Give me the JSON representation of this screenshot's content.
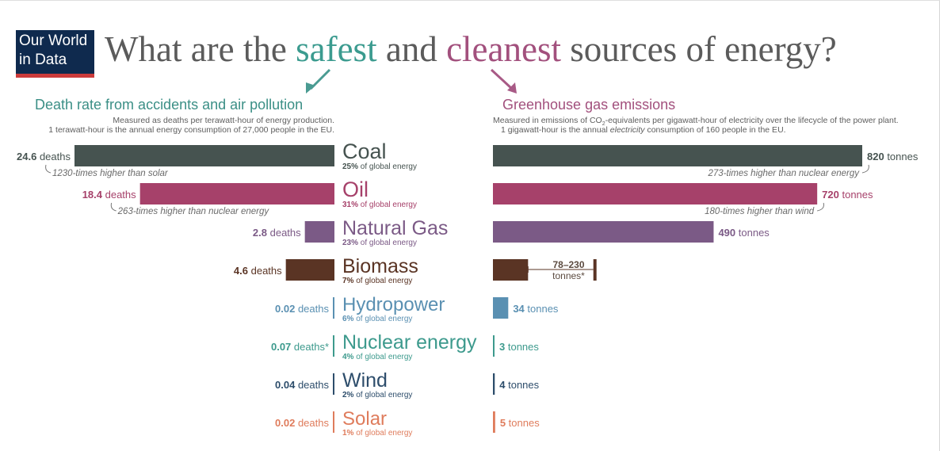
{
  "logo": {
    "line1": "Our World",
    "line2": "in Data"
  },
  "headline": {
    "part1": "What are the ",
    "safe": "safest",
    "part2": " and ",
    "clean": "cleanest",
    "part3": " sources of energy?"
  },
  "left_panel": {
    "title": "Death rate from accidents and air pollution",
    "subtitle1": "Measured as deaths per terawatt-hour of energy production.",
    "subtitle2": "1 terawatt-hour is the annual energy consumption of 27,000 people in the EU."
  },
  "right_panel": {
    "title": "Greenhouse gas emissions",
    "subtitle1_pre": "Measured in emissions of CO",
    "subtitle1_sub": "2",
    "subtitle1_post": "-equivalents per gigawatt-hour of electricity over the lifecycle of the power plant.",
    "subtitle2_pre": "1 gigawatt-hour is the annual ",
    "subtitle2_em": "electricity",
    "subtitle2_post": " consumption of 160 people in the EU."
  },
  "chart_data": {
    "type": "bar",
    "categories": [
      "Coal",
      "Oil",
      "Natural Gas",
      "Biomass",
      "Hydropower",
      "Nuclear energy",
      "Wind",
      "Solar"
    ],
    "share_labels": [
      "25%",
      "31%",
      "23%",
      "7%",
      "6%",
      "4%",
      "2%",
      "1%"
    ],
    "share_suffix": " of global energy",
    "colors": [
      "#465350",
      "#a6416a",
      "#7b5a86",
      "#5a3424",
      "#5a90b2",
      "#3d9a8d",
      "#2d4d6b",
      "#df7c5c"
    ],
    "series": [
      {
        "name": "Death rate from accidents and air pollution",
        "values": [
          24.6,
          18.4,
          2.8,
          4.6,
          0.02,
          0.07,
          0.04,
          0.02
        ],
        "labels": [
          "24.6",
          "18.4",
          "2.8",
          "4.6",
          "0.02",
          "0.07",
          "0.04",
          "0.02"
        ],
        "unit": " deaths",
        "asterisk": [
          false,
          false,
          false,
          false,
          false,
          true,
          false,
          false
        ],
        "annotations": [
          {
            "index": 0,
            "text": "1230-times higher than solar"
          },
          {
            "index": 1,
            "text": "263-times higher than nuclear energy"
          }
        ]
      },
      {
        "name": "Greenhouse gas emissions",
        "values": [
          820,
          720,
          490,
          78,
          34,
          3,
          4,
          5
        ],
        "range": {
          "index": 3,
          "low": 78,
          "high": 230,
          "label": "78–230",
          "unit": "tonnes*"
        },
        "labels": [
          "820",
          "720",
          "490",
          "",
          "34",
          "3",
          "4",
          "5"
        ],
        "unit": " tonnes",
        "annotations": [
          {
            "index": 0,
            "text": "273-times higher than nuclear energy"
          },
          {
            "index": 1,
            "text": "180-times higher than wind"
          }
        ]
      }
    ]
  }
}
